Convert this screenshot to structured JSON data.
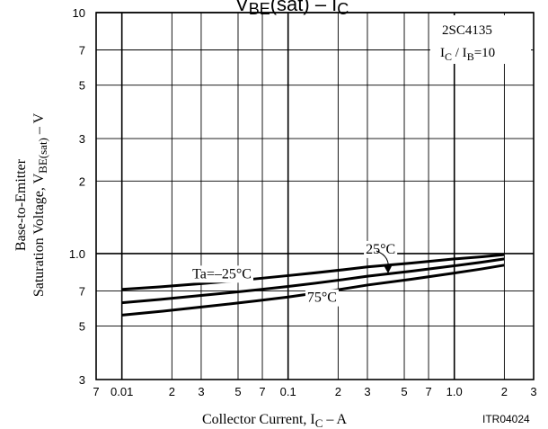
{
  "chart_data": {
    "type": "line",
    "title": "VBE(sat) – IC",
    "xlabel": "Collector Current, IC – A",
    "ylabel_line1": "Base-to-Emitter",
    "ylabel_line2": "Saturation Voltage, VBE(sat) – V",
    "xscale": "log",
    "yscale": "log",
    "xlim": [
      0.007,
      3
    ],
    "ylim": [
      0.3,
      10
    ],
    "grid": true,
    "x_tick_labels": [
      {
        "v": 0.007,
        "t": "7"
      },
      {
        "v": 0.01,
        "t": "0.01"
      },
      {
        "v": 0.02,
        "t": "2"
      },
      {
        "v": 0.03,
        "t": "3"
      },
      {
        "v": 0.05,
        "t": "5"
      },
      {
        "v": 0.07,
        "t": "7"
      },
      {
        "v": 0.1,
        "t": "0.1"
      },
      {
        "v": 0.2,
        "t": "2"
      },
      {
        "v": 0.3,
        "t": "3"
      },
      {
        "v": 0.5,
        "t": "5"
      },
      {
        "v": 0.7,
        "t": "7"
      },
      {
        "v": 1.0,
        "t": "1.0"
      },
      {
        "v": 2,
        "t": "2"
      },
      {
        "v": 3,
        "t": "3"
      }
    ],
    "y_tick_labels": [
      {
        "v": 0.3,
        "t": "3"
      },
      {
        "v": 0.5,
        "t": "5"
      },
      {
        "v": 0.7,
        "t": "7"
      },
      {
        "v": 1.0,
        "t": "1.0"
      },
      {
        "v": 2,
        "t": "2"
      },
      {
        "v": 3,
        "t": "3"
      },
      {
        "v": 5,
        "t": "5"
      },
      {
        "v": 7,
        "t": "7"
      },
      {
        "v": 10,
        "t": "10"
      }
    ],
    "series": [
      {
        "x": [
          0.01,
          0.03,
          0.1,
          0.3,
          1.0,
          2.0
        ],
        "y": [
          0.71,
          0.75,
          0.81,
          0.88,
          0.95,
          0.99
        ]
      },
      {
        "x": [
          0.01,
          0.03,
          0.1,
          0.3,
          1.0,
          2.0
        ],
        "y": [
          0.625,
          0.67,
          0.73,
          0.805,
          0.89,
          0.95
        ]
      },
      {
        "x": [
          0.01,
          0.03,
          0.1,
          0.3,
          1.0,
          2.0
        ],
        "y": [
          0.555,
          0.6,
          0.66,
          0.74,
          0.83,
          0.895
        ]
      }
    ],
    "curve_labels": [
      {
        "text": "Ta=–25°C",
        "x": 0.04,
        "y": 0.79,
        "anchor": "middle"
      },
      {
        "text": "25°C",
        "x": 0.36,
        "y": 1.0,
        "anchor": "middle"
      },
      {
        "text": "75°C",
        "x": 0.16,
        "y": 0.63,
        "anchor": "middle"
      }
    ],
    "annotation_box": {
      "line1": "2SC4135",
      "line2": "IC / IB=10"
    },
    "figure_id": "ITR04024"
  }
}
